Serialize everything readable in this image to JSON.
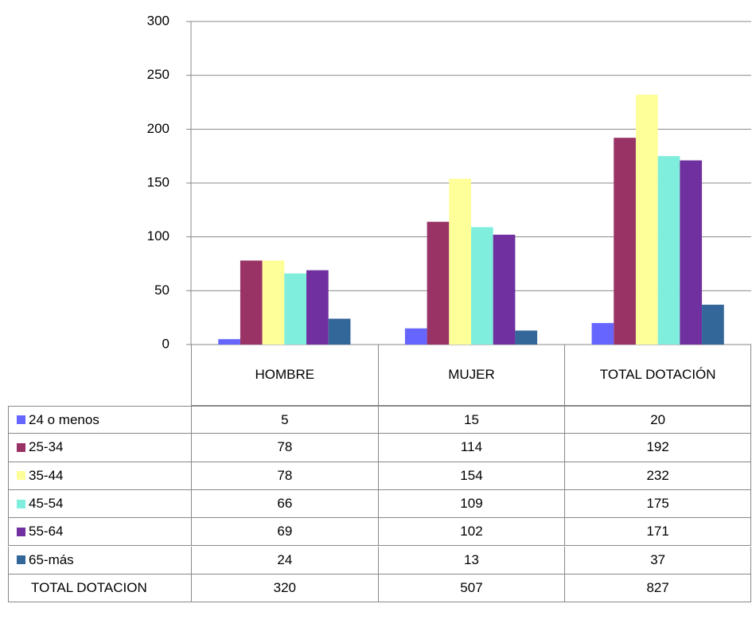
{
  "chart_data": {
    "type": "bar",
    "categories": [
      "HOMBRE",
      "MUJER",
      "TOTAL DOTACIÓN"
    ],
    "series": [
      {
        "name": "24 o menos",
        "color": "#6666ff",
        "values": [
          5,
          15,
          20
        ]
      },
      {
        "name": "25-34",
        "color": "#993366",
        "values": [
          78,
          114,
          192
        ]
      },
      {
        "name": "35-44",
        "color": "#ffff99",
        "values": [
          78,
          154,
          232
        ]
      },
      {
        "name": "45-54",
        "color": "#80eedd",
        "values": [
          66,
          109,
          175
        ]
      },
      {
        "name": "55-64",
        "color": "#7030a0",
        "values": [
          69,
          102,
          171
        ]
      },
      {
        "name": "65-más",
        "color": "#336699",
        "values": [
          24,
          13,
          37
        ]
      }
    ],
    "total_row": {
      "name": "TOTAL DOTACION",
      "values": [
        320,
        507,
        827
      ]
    },
    "ylim": [
      0,
      300
    ],
    "yticks": [
      0,
      50,
      100,
      150,
      200,
      250,
      300
    ],
    "grid": true
  }
}
